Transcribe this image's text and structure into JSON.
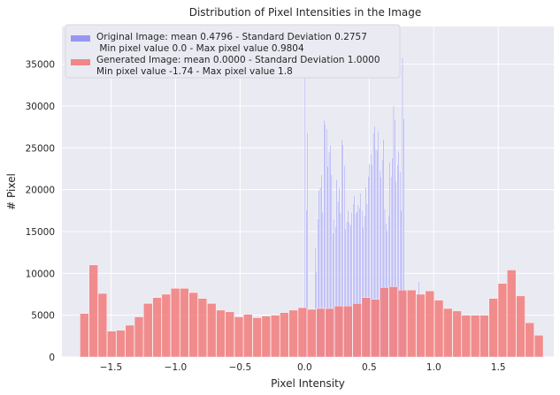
{
  "chart_data": {
    "type": "bar",
    "title": "Distribution of Pixel Intensities in the Image",
    "xlabel": "Pixel Intensity",
    "ylabel": "# Pixel",
    "xlim": [
      -1.88,
      1.93
    ],
    "ylim": [
      0,
      39500
    ],
    "xticks": [
      -1.5,
      -1.0,
      -0.5,
      0.0,
      0.5,
      1.0,
      1.5
    ],
    "xtick_labels": [
      "−1.5",
      "−1.0",
      "−0.5",
      "0.0",
      "0.5",
      "1.0",
      "1.5"
    ],
    "yticks": [
      0,
      5000,
      10000,
      15000,
      20000,
      25000,
      30000,
      35000
    ],
    "ytick_labels": [
      "0",
      "5000",
      "10000",
      "15000",
      "20000",
      "25000",
      "30000",
      "35000"
    ],
    "grid": true,
    "legend_position": "top-left",
    "colors": {
      "background": "#eaeaf2",
      "grid": "#ffffff",
      "original": "#7b7bf0",
      "generated": "#f27b7b"
    },
    "series": [
      {
        "name": "Original Image: mean 0.4796 - Standard Deviation 0.2757",
        "name_line2": " Min pixel value 0.0 - Max pixel value 0.9804",
        "bin_start": 0.0,
        "bin_width": 0.0098,
        "values": [
          36500,
          17600,
          26800,
          0,
          0,
          0,
          0,
          0,
          13100,
          10200,
          16500,
          19900,
          20300,
          21800,
          17300,
          28300,
          27800,
          27300,
          22800,
          24500,
          25300,
          21800,
          14800,
          16500,
          15600,
          21200,
          18600,
          20200,
          17300,
          26000,
          25400,
          22900,
          15300,
          16200,
          17500,
          16100,
          15800,
          17300,
          18300,
          19300,
          17200,
          17400,
          18200,
          17800,
          19600,
          17500,
          15500,
          16900,
          20300,
          18300,
          21600,
          23100,
          24300,
          23000,
          26800,
          27600,
          24800,
          24800,
          27000,
          22300,
          21500,
          23600,
          26000,
          17700,
          16000,
          15100,
          16900,
          23300,
          21600,
          23800,
          30000,
          28400,
          21000,
          23000,
          24600,
          22100,
          17500,
          35800,
          28500,
          7600,
          0,
          0,
          0,
          0,
          0,
          0,
          0,
          0,
          0,
          0,
          9000
        ]
      },
      {
        "name": "Generated Image: mean 0.0000 - Standard Deviation 1.0000",
        "name_line2": "Min pixel value -1.74 - Max pixel value 1.8",
        "bin_start": -1.74,
        "bin_width": 0.0704,
        "values": [
          5200,
          11000,
          7600,
          3100,
          3200,
          3800,
          4800,
          6400,
          7100,
          7500,
          8200,
          8200,
          7700,
          7000,
          6400,
          5600,
          5400,
          4800,
          5100,
          4700,
          4900,
          5000,
          5300,
          5600,
          5900,
          5700,
          5800,
          5800,
          6100,
          6100,
          6400,
          7100,
          6900,
          8300,
          8400,
          8000,
          8000,
          7500,
          7900,
          6800,
          5800,
          5500,
          5000,
          5000,
          5000,
          7000,
          8800,
          10400,
          7300,
          4100,
          2600
        ]
      }
    ]
  }
}
